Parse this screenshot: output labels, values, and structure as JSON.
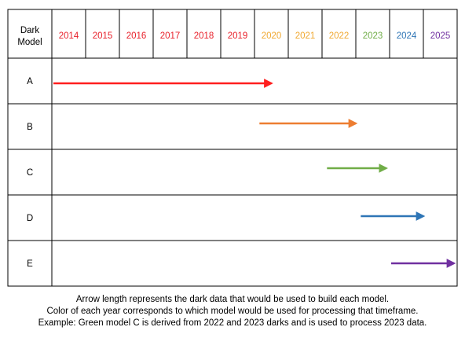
{
  "header": {
    "model_label": [
      "Dark",
      "Model"
    ],
    "years": [
      "2014",
      "2015",
      "2016",
      "2017",
      "2018",
      "2019",
      "2020",
      "2021",
      "2022",
      "2023",
      "2024",
      "2025"
    ],
    "year_colors": [
      "#e8202a",
      "#e8202a",
      "#e8202a",
      "#e8202a",
      "#e8202a",
      "#e8202a",
      "#f0a830",
      "#f0a830",
      "#f0a830",
      "#70ad47",
      "#2e75b6",
      "#7030a0"
    ]
  },
  "models": [
    {
      "label": "A",
      "start_year": 2014.0,
      "end_year": 2020.5,
      "color": "#ff1f1f"
    },
    {
      "label": "B",
      "start_year": 2020.1,
      "end_year": 2023.0,
      "color": "#ed7d31"
    },
    {
      "label": "C",
      "start_year": 2022.1,
      "end_year": 2023.9,
      "color": "#70ad47"
    },
    {
      "label": "D",
      "start_year": 2023.1,
      "end_year": 2025.0,
      "color": "#2e75b6"
    },
    {
      "label": "E",
      "start_year": 2024.0,
      "end_year": 2026.0,
      "color": "#7030a0"
    }
  ],
  "caption": {
    "line1": "Arrow length represents the dark data that would be used to build each model.",
    "line2": "Color of each year corresponds to which model would be used for processing that timeframe.",
    "line3": "Example: Green model C is derived from 2022 and 2023 darks and is used to process 2023 data."
  }
}
